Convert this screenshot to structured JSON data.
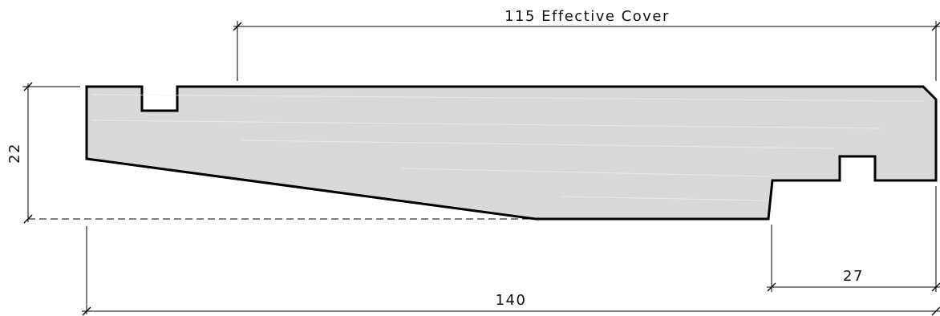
{
  "diagram": {
    "dimensions": {
      "effective_cover": "115 Effective Cover",
      "total_width": "140",
      "thickness": "22",
      "tongue_offset": "27"
    }
  }
}
